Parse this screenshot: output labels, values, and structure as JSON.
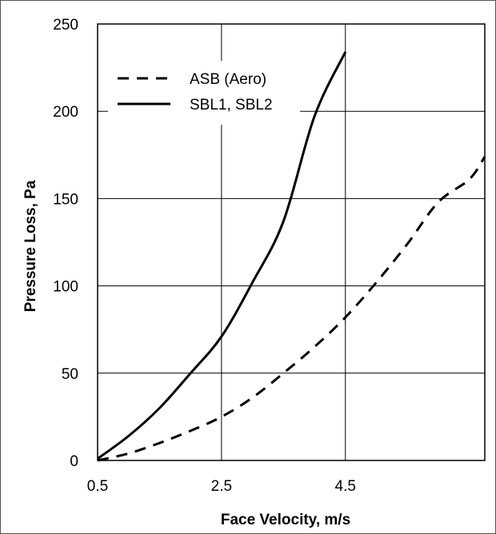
{
  "chart_data": {
    "type": "line",
    "title": "",
    "xlabel": "Face Velocity, m/s",
    "ylabel": "Pressure Loss, Pa",
    "xlim": [
      0.5,
      6.75
    ],
    "ylim": [
      0,
      250
    ],
    "x_ticks": [
      "0.5",
      "2.5",
      "4.5"
    ],
    "x_tick_values": [
      0.5,
      2.5,
      4.5
    ],
    "y_ticks": [
      "0",
      "50",
      "100",
      "150",
      "200",
      "250"
    ],
    "y_tick_values": [
      0,
      50,
      100,
      150,
      200,
      250
    ],
    "grid": true,
    "legend_position": "top-left",
    "series": [
      {
        "name": "ASB (Aero)",
        "style": "dashed",
        "color": "#000000",
        "x": [
          0.5,
          1.0,
          1.5,
          2.0,
          2.5,
          3.0,
          3.5,
          4.0,
          4.5,
          5.0,
          5.5,
          6.0,
          6.5,
          6.75
        ],
        "y": [
          0,
          4,
          10,
          17,
          25,
          36,
          50,
          65,
          82,
          102,
          124,
          148,
          161,
          174
        ]
      },
      {
        "name": "SBL1, SBL2",
        "style": "solid",
        "color": "#000000",
        "x": [
          0.5,
          1.0,
          1.5,
          2.0,
          2.5,
          3.0,
          3.5,
          4.0,
          4.5
        ],
        "y": [
          1,
          14,
          30,
          50,
          71,
          102,
          137,
          197,
          234
        ]
      }
    ]
  }
}
